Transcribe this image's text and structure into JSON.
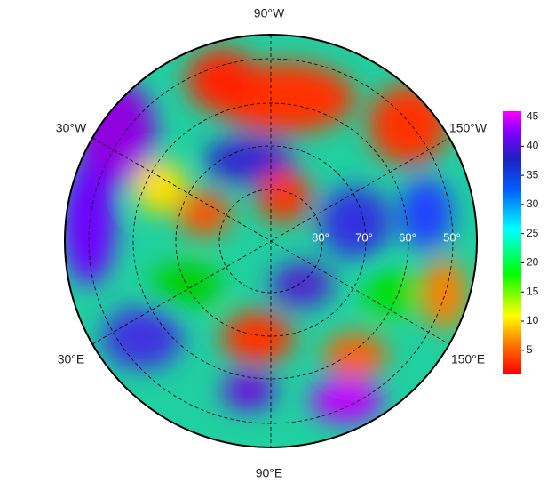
{
  "map": {
    "lon_labels": [
      "90°W",
      "30°W",
      "150°W",
      "30°E",
      "150°E",
      "90°E"
    ],
    "lat_labels": [
      "80°",
      "70°",
      "60°",
      "50°"
    ],
    "colorbar": {
      "lim": [
        1,
        46
      ],
      "ticks": [
        5,
        10,
        15,
        20,
        25,
        30,
        35,
        40,
        45
      ]
    }
  }
}
